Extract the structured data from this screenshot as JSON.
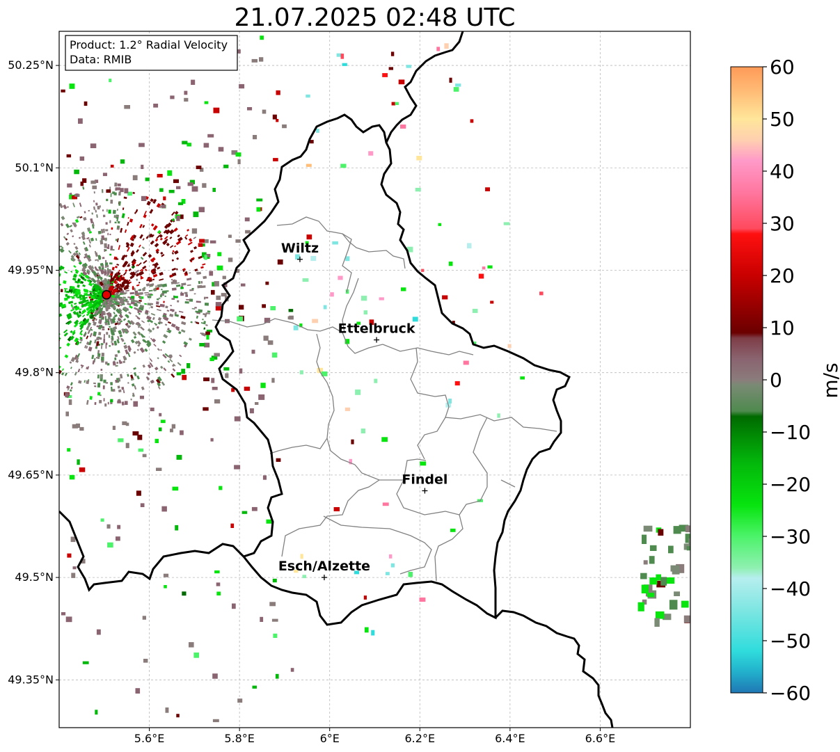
{
  "title": "21.07.2025 02:48 UTC",
  "info_box": {
    "product": "Product: 1.2° Radial Velocity",
    "source": "Data: RMIB"
  },
  "map": {
    "lon_range": [
      5.4,
      6.8
    ],
    "lat_range": [
      49.28,
      50.3
    ],
    "lat_ticks": [
      {
        "value": 50.25,
        "label": "50.25°N"
      },
      {
        "value": 50.1,
        "label": "50.1°N"
      },
      {
        "value": 49.95,
        "label": "49.95°N"
      },
      {
        "value": 49.8,
        "label": "49.8°N"
      },
      {
        "value": 49.65,
        "label": "49.65°N"
      },
      {
        "value": 49.5,
        "label": "49.5°N"
      },
      {
        "value": 49.35,
        "label": "49.35°N"
      }
    ],
    "lon_ticks": [
      {
        "value": 5.6,
        "label": "5.6°E"
      },
      {
        "value": 5.8,
        "label": "5.8°E"
      },
      {
        "value": 6.0,
        "label": "6°E"
      },
      {
        "value": 6.2,
        "label": "6.2°E"
      },
      {
        "value": 6.4,
        "label": "6.4°E"
      },
      {
        "value": 6.6,
        "label": "6.6°E"
      }
    ],
    "cities": [
      {
        "name": "Wiltz",
        "lon": 5.934,
        "lat": 49.966
      },
      {
        "name": "Ettelbruck",
        "lon": 6.104,
        "lat": 49.848
      },
      {
        "name": "Findel",
        "lon": 6.211,
        "lat": 49.627
      },
      {
        "name": "Esch/Alzette",
        "lon": 5.988,
        "lat": 49.5
      }
    ],
    "radar_site": {
      "lon": 5.505,
      "lat": 49.914
    }
  },
  "colorbar": {
    "label": "m/s",
    "vmin": -60,
    "vmax": 60,
    "ticks": [
      {
        "value": 60,
        "label": "60"
      },
      {
        "value": 50,
        "label": "50"
      },
      {
        "value": 40,
        "label": "40"
      },
      {
        "value": 30,
        "label": "30"
      },
      {
        "value": 20,
        "label": "20"
      },
      {
        "value": 10,
        "label": "10"
      },
      {
        "value": 0,
        "label": "0"
      },
      {
        "value": -10,
        "label": "−10"
      },
      {
        "value": -20,
        "label": "−20"
      },
      {
        "value": -30,
        "label": "−30"
      },
      {
        "value": -40,
        "label": "−40"
      },
      {
        "value": -50,
        "label": "−50"
      },
      {
        "value": -60,
        "label": "−60"
      }
    ],
    "color_stops": [
      {
        "v": -60,
        "c": "#1f77b4"
      },
      {
        "v": -56,
        "c": "#22b0cc"
      },
      {
        "v": -52,
        "c": "#2fdcdc"
      },
      {
        "v": -44,
        "c": "#7fe6e2"
      },
      {
        "v": -38,
        "c": "#b6eeee"
      },
      {
        "v": -36,
        "c": "#8ef0b0"
      },
      {
        "v": -30,
        "c": "#4cf36a"
      },
      {
        "v": -24,
        "c": "#07e40e"
      },
      {
        "v": -16,
        "c": "#03b80b"
      },
      {
        "v": -7,
        "c": "#006a00"
      },
      {
        "v": -6,
        "c": "#4f8a4f"
      },
      {
        "v": -1,
        "c": "#7a8a74"
      },
      {
        "v": 0,
        "c": "#8b7c7c"
      },
      {
        "v": 4,
        "c": "#8a6470"
      },
      {
        "v": 8,
        "c": "#7e3d47"
      },
      {
        "v": 9,
        "c": "#6b0000"
      },
      {
        "v": 20,
        "c": "#c90000"
      },
      {
        "v": 28,
        "c": "#ff1010"
      },
      {
        "v": 29,
        "c": "#ff4a5e"
      },
      {
        "v": 36,
        "c": "#ff77a0"
      },
      {
        "v": 42,
        "c": "#ff9ac8"
      },
      {
        "v": 46,
        "c": "#ffd0b0"
      },
      {
        "v": 50,
        "c": "#ffe69a"
      },
      {
        "v": 55,
        "c": "#ffbe78"
      },
      {
        "v": 60,
        "c": "#ff9a58"
      }
    ]
  }
}
